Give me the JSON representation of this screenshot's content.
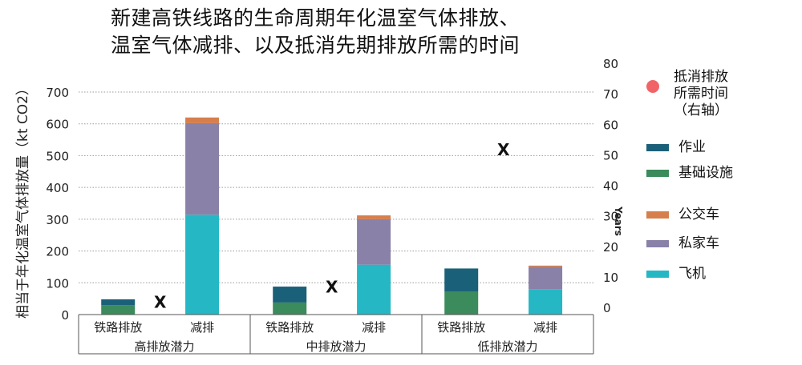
{
  "title": "新建高铁线路的生命周期年化温室气体排放、\n温室气体减排、以及抵消先期排放所需的时间",
  "y_axis_title": "相当于年化温室气体排放量（kt CO2）",
  "right_axis_title": "Years",
  "legend": [
    {
      "label": "抵消排放\n所需时间\n（右轴）",
      "color": "#f06468",
      "kind": "dot"
    },
    {
      "label": "作业",
      "color": "#1b6079",
      "kind": "swatch"
    },
    {
      "label": "基础设施",
      "color": "#3b8b5c",
      "kind": "swatch"
    },
    {
      "label": "公交车",
      "color": "#d67f4d",
      "kind": "swatch"
    },
    {
      "label": "私家车",
      "color": "#8a81a8",
      "kind": "swatch"
    },
    {
      "label": "飞机",
      "color": "#25b7c4",
      "kind": "swatch"
    }
  ],
  "chart_data": {
    "type": "bar",
    "stacked": true,
    "groups": [
      "高排放潜力",
      "中排放潜力",
      "低排放潜力"
    ],
    "categories": [
      "铁路排放",
      "减排",
      "铁路排放",
      "减排",
      "铁路排放",
      "减排"
    ],
    "series": [
      {
        "name": "基础设施",
        "color": "#3b8b5c",
        "values": [
          30,
          0,
          38,
          0,
          73,
          0
        ]
      },
      {
        "name": "作业",
        "color": "#1b6079",
        "values": [
          18,
          0,
          50,
          0,
          72,
          0
        ]
      },
      {
        "name": "飞机",
        "color": "#25b7c4",
        "values": [
          0,
          314,
          0,
          157,
          0,
          80
        ]
      },
      {
        "name": "私家车",
        "color": "#8a81a8",
        "values": [
          0,
          288,
          0,
          143,
          0,
          70
        ]
      },
      {
        "name": "公交车",
        "color": "#d67f4d",
        "values": [
          0,
          18,
          0,
          12,
          0,
          4
        ]
      }
    ],
    "payback_years": {
      "name": "抵消排放所需时间（右轴）",
      "marker": "X",
      "values": [
        2,
        7,
        52
      ]
    },
    "ylim": [
      0,
      700
    ],
    "yticks": [
      0,
      100,
      200,
      300,
      400,
      500,
      600,
      700
    ],
    "y2lim": [
      0,
      80
    ],
    "y2ticks": [
      0,
      10,
      20,
      30,
      40,
      50,
      60,
      70,
      80
    ],
    "grid": true,
    "legend_position": "right"
  }
}
